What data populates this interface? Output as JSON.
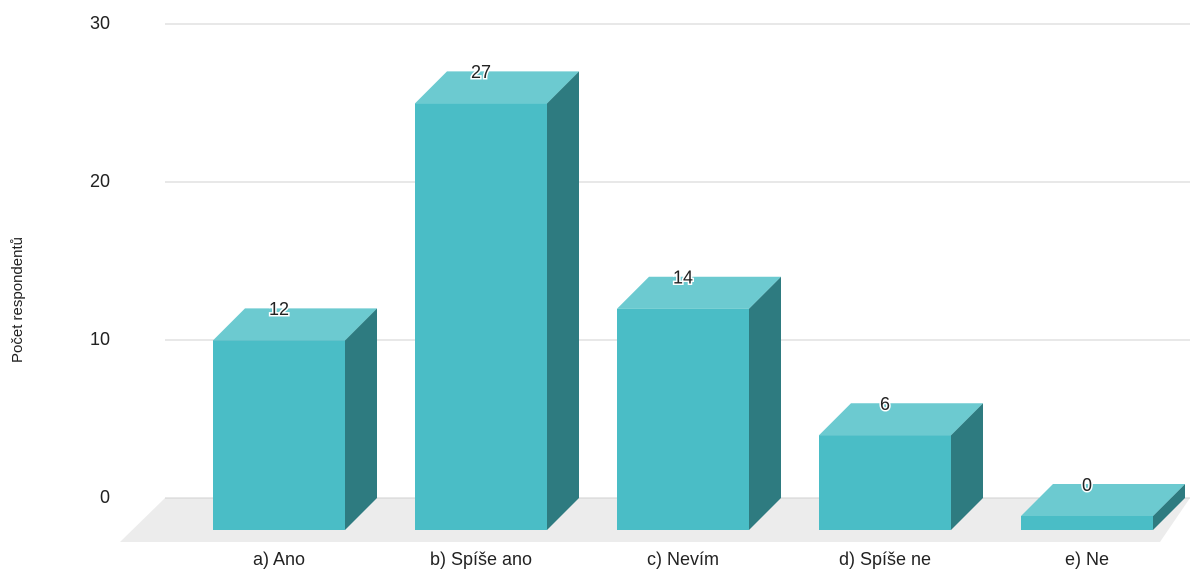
{
  "chart_data": {
    "type": "bar3d",
    "y_label": "Počet respondentů",
    "categories": [
      "a) Ano",
      "b) Spíše ano",
      "c) Nevím",
      "d) Spíše ne",
      "e) Ne"
    ],
    "values": [
      12,
      27,
      14,
      6,
      0
    ],
    "colors": {
      "front": "#4abdc6",
      "top": "#6ccad0",
      "side": "#2e7b80",
      "floor": "#ececec"
    },
    "ylim": [
      0,
      30
    ],
    "yticks": [
      0,
      10,
      20,
      30
    ],
    "grid": true
  }
}
